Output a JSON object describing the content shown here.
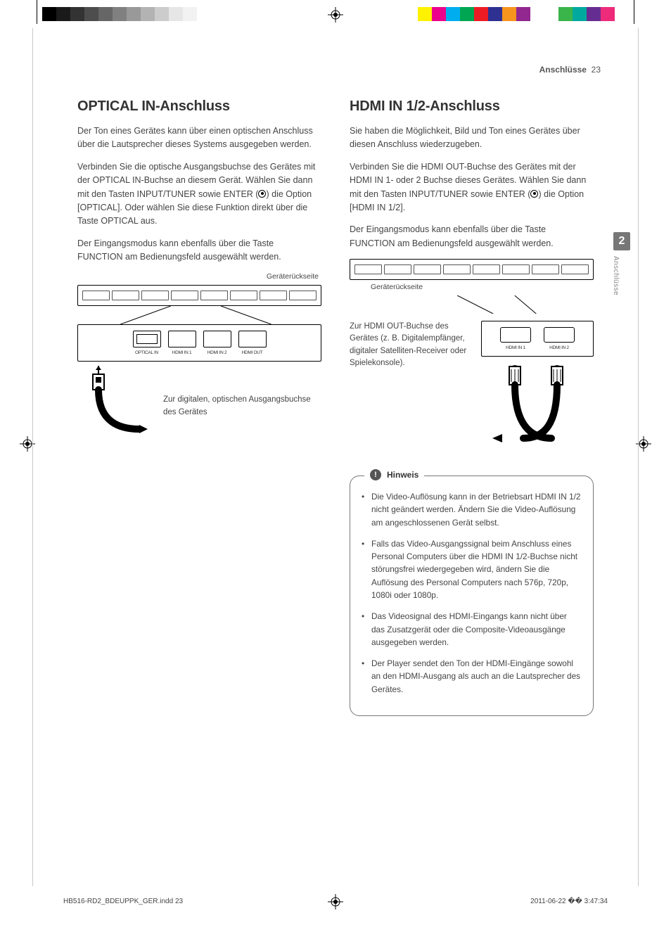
{
  "print": {
    "grayscale": [
      "#000000",
      "#1a1a1a",
      "#333333",
      "#4d4d4d",
      "#666666",
      "#808080",
      "#999999",
      "#b3b3b3",
      "#cccccc",
      "#e6e6e6",
      "#f2f2f2",
      "#ffffff",
      "#ffffff",
      "#ffffff",
      "#ffffff"
    ],
    "process": [
      "#fff200",
      "#ec008c",
      "#00aeef",
      "#00a651",
      "#ed1c24",
      "#2e3192",
      "#f7941d",
      "#92278f",
      "#ffffff",
      "#ffffff",
      "#39b54a",
      "#00a99d",
      "#662d91",
      "#ee2a7b",
      "#ffffff"
    ]
  },
  "header": {
    "section": "Anschlüsse",
    "page": "23"
  },
  "sidetab": {
    "num": "2",
    "label": "Anschlüsse"
  },
  "left": {
    "title": "OPTICAL IN-Anschluss",
    "p1": "Der Ton eines Gerätes kann über einen optischen Anschluss über die Lautsprecher dieses Systems ausgegeben werden.",
    "p2a": "Verbinden Sie die optische Ausgangsbuchse des Gerätes mit der OPTICAL IN-Buchse an diesem Gerät. Wählen Sie dann mit den Tasten INPUT/TUNER sowie ENTER (",
    "p2b": ") die Option [OPTICAL]. Oder wählen Sie diese Funktion direkt über die Taste OPTICAL aus.",
    "p3": "Der Eingangsmodus kann ebenfalls über die Taste FUNCTION am Bedienungsfeld ausgewählt werden.",
    "rear_label": "Geräterückseite",
    "ports": {
      "optical": "OPTICAL IN",
      "h1": "HDMI IN 1",
      "h2": "HDMI IN 2",
      "hout": "HDMI OUT"
    },
    "cable_caption": "Zur digitalen, optischen Ausgangsbuchse des Gerätes"
  },
  "right": {
    "title": "HDMI IN 1/2-Anschluss",
    "p1": "Sie haben die Möglichkeit, Bild und Ton eines Gerätes über diesen Anschluss wiederzugeben.",
    "p2a": "Verbinden Sie die HDMI OUT-Buchse des Gerätes mit der HDMI IN 1- oder 2 Buchse dieses Gerätes. Wählen Sie dann mit den Tasten INPUT/TUNER sowie ENTER (",
    "p2b": ") die Option [HDMI IN 1/2].",
    "p3": "Der Eingangsmodus kann ebenfalls über die Taste FUNCTION am Bedienungsfeld ausgewählt werden.",
    "rear_label": "Geräterückseite",
    "ports": {
      "h1": "HDMI IN 1",
      "h2": "HDMI IN 2"
    },
    "hdmi_caption": "Zur HDMI OUT-Buchse des Gerätes (z. B. Digitalempfänger, digitaler Satelliten-Receiver oder Spielekonsole).",
    "note_title": "Hinweis",
    "notes": [
      "Die Video-Auflösung kann in der Betriebsart HDMI IN 1/2 nicht geändert werden. Ändern Sie die Video-Auflösung am angeschlossenen Gerät selbst.",
      "Falls das Video-Ausgangssignal beim Anschluss eines Personal Computers über die HDMI IN 1/2-Buchse nicht störungsfrei wiedergegeben wird, ändern Sie die Auflösung des Personal Computers nach 576p, 720p, 1080i oder 1080p.",
      "Das Videosignal des HDMI-Eingangs kann nicht über das Zusatzgerät oder die Composite-Videoausgänge ausgegeben werden.",
      "Der Player sendet den Ton der HDMI-Eingänge sowohl an den HDMI-Ausgang als auch an die Lautsprecher des Gerätes."
    ]
  },
  "footer": {
    "file": "HB516-RD2_BDEUPPK_GER.indd   23",
    "stamp": "2011-06-22   �� 3:47:34"
  }
}
